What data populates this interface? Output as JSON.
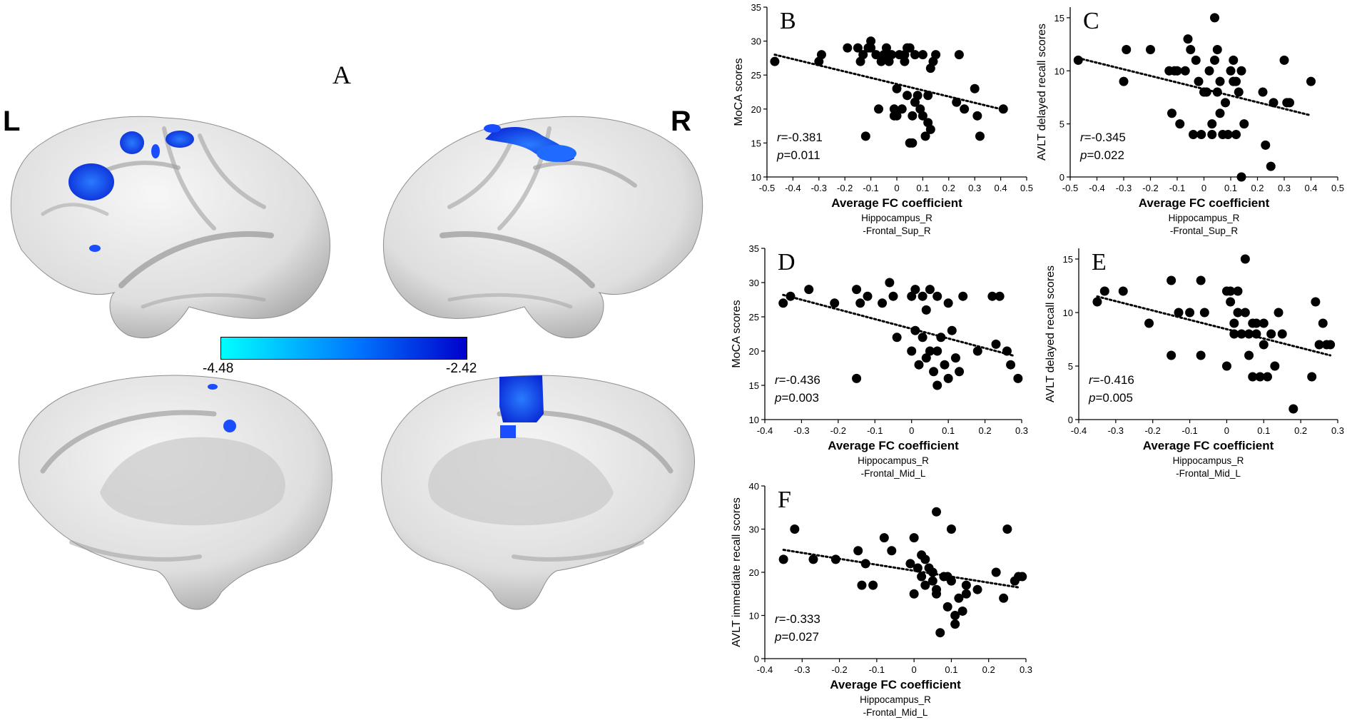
{
  "panel_a": {
    "label": "A",
    "left_hemisphere_label": "L",
    "right_hemisphere_label": "R",
    "colorbar": {
      "min_label": "-4.48",
      "max_label": "-2.42",
      "color_low": "#00ffff",
      "color_high": "#0000cc"
    },
    "surface_color": "#d6d6d6",
    "cluster_color": "#1a4dff"
  },
  "chart_data": [
    {
      "type": "scatter",
      "panel_label": "B",
      "xlabel": "Average FC coefficient",
      "xlabel_sub": [
        "Hippocampus_R",
        "-Frontal_Sup_R"
      ],
      "ylabel": "MoCA scores",
      "xlim": [
        -0.5,
        0.5
      ],
      "ylim": [
        10,
        35
      ],
      "xticks": [
        "-0.5",
        "-0.4",
        "-0.3",
        "-0.2",
        "-0.1",
        "0",
        "0.1",
        "0.2",
        "0.3",
        "0.4",
        "0.5"
      ],
      "yticks": [
        "10",
        "15",
        "20",
        "25",
        "30",
        "35"
      ],
      "r_text": "=-0.381",
      "p_text": "=0.011",
      "trend": {
        "x": [
          -0.47,
          0.4
        ],
        "y": [
          28.0,
          20.0
        ]
      },
      "points": {
        "x": [
          -0.47,
          -0.3,
          -0.29,
          -0.19,
          -0.15,
          -0.14,
          -0.13,
          -0.12,
          -0.11,
          -0.1,
          -0.1,
          -0.08,
          -0.07,
          -0.06,
          -0.05,
          -0.04,
          -0.03,
          -0.02,
          -0.01,
          -0.01,
          0.0,
          0.0,
          0.01,
          0.02,
          0.03,
          0.03,
          0.04,
          0.04,
          0.05,
          0.05,
          0.06,
          0.06,
          0.07,
          0.07,
          0.08,
          0.09,
          0.1,
          0.1,
          0.11,
          0.12,
          0.12,
          0.13,
          0.13,
          0.14,
          0.15,
          0.23,
          0.24,
          0.26,
          0.3,
          0.31,
          0.32,
          0.41
        ],
        "y": [
          27,
          27,
          28,
          29,
          29,
          27,
          28,
          16,
          29,
          29,
          30,
          28,
          20,
          27,
          28,
          29,
          27,
          28,
          19,
          20,
          23,
          19,
          28,
          20,
          27,
          28,
          29,
          22,
          15,
          29,
          15,
          19,
          28,
          21,
          22,
          20,
          28,
          19,
          16,
          22,
          18,
          26,
          17,
          27,
          28,
          21,
          28,
          20,
          23,
          19,
          16,
          20
        ]
      }
    },
    {
      "type": "scatter",
      "panel_label": "C",
      "xlabel": "Average FC coefficient",
      "xlabel_sub": [
        "Hippocampus_R",
        "-Frontal_Sup_R"
      ],
      "ylabel": "AVLT delayed recall scores",
      "xlim": [
        -0.5,
        0.5
      ],
      "ylim": [
        0,
        16
      ],
      "xticks": [
        "-0.5",
        "-0.4",
        "-0.3",
        "-0.2",
        "-0.1",
        "0",
        "0.1",
        "0.2",
        "0.3",
        "0.4",
        "0.5"
      ],
      "yticks": [
        "0",
        "5",
        "10",
        "15"
      ],
      "r_text": "=-0.345",
      "p_text": "=0.022",
      "trend": {
        "x": [
          -0.47,
          0.4
        ],
        "y": [
          11.2,
          5.8
        ]
      },
      "points": {
        "x": [
          -0.47,
          -0.3,
          -0.29,
          -0.2,
          -0.13,
          -0.12,
          -0.11,
          -0.1,
          -0.09,
          -0.07,
          -0.06,
          -0.05,
          -0.04,
          -0.03,
          -0.02,
          -0.01,
          0.0,
          0.01,
          0.02,
          0.03,
          0.03,
          0.04,
          0.04,
          0.05,
          0.05,
          0.06,
          0.06,
          0.07,
          0.08,
          0.09,
          0.1,
          0.11,
          0.11,
          0.12,
          0.12,
          0.13,
          0.14,
          0.14,
          0.15,
          0.22,
          0.23,
          0.25,
          0.26,
          0.3,
          0.31,
          0.32,
          0.4
        ],
        "y": [
          11,
          9,
          12,
          12,
          10,
          6,
          10,
          10,
          5,
          10,
          13,
          12,
          4,
          11,
          9,
          4,
          8,
          8,
          10,
          5,
          4,
          11,
          15,
          12,
          8,
          6,
          9,
          4,
          7,
          4,
          10,
          11,
          9,
          4,
          9,
          8,
          0,
          10,
          5,
          8,
          3,
          1,
          7,
          11,
          7,
          7,
          9
        ]
      }
    },
    {
      "type": "scatter",
      "panel_label": "D",
      "xlabel": "Average FC coefficient",
      "xlabel_sub": [
        "Hippocampus_R",
        "-Frontal_Mid_L"
      ],
      "ylabel": "MoCA scores",
      "xlim": [
        -0.4,
        0.3
      ],
      "ylim": [
        10,
        35
      ],
      "xticks": [
        "-0.4",
        "-0.3",
        "-0.2",
        "-0.1",
        "0",
        "0.1",
        "0.2",
        "0.3"
      ],
      "yticks": [
        "10",
        "15",
        "20",
        "25",
        "30",
        "35"
      ],
      "r_text": "=-0.436",
      "p_text": "=0.003",
      "trend": {
        "x": [
          -0.35,
          0.28
        ],
        "y": [
          28.2,
          19.3
        ]
      },
      "points": {
        "x": [
          -0.35,
          -0.33,
          -0.28,
          -0.21,
          -0.15,
          -0.15,
          -0.14,
          -0.12,
          -0.08,
          -0.06,
          -0.05,
          -0.04,
          0.0,
          0.0,
          0.01,
          0.01,
          0.02,
          0.03,
          0.03,
          0.04,
          0.04,
          0.05,
          0.05,
          0.06,
          0.07,
          0.07,
          0.07,
          0.08,
          0.09,
          0.1,
          0.1,
          0.11,
          0.12,
          0.13,
          0.14,
          0.18,
          0.22,
          0.23,
          0.24,
          0.26,
          0.27,
          0.29
        ],
        "y": [
          27,
          28,
          29,
          27,
          29,
          16,
          27,
          28,
          27,
          30,
          28,
          22,
          28,
          20,
          23,
          29,
          18,
          28,
          22,
          19,
          26,
          20,
          29,
          17,
          15,
          28,
          20,
          22,
          18,
          16,
          27,
          23,
          19,
          17,
          28,
          20,
          28,
          21,
          28,
          20,
          18,
          16
        ]
      }
    },
    {
      "type": "scatter",
      "panel_label": "E",
      "xlabel": "Average FC coefficient",
      "xlabel_sub": [
        "Hippocampus_R",
        "-Frontal_Mid_L"
      ],
      "ylabel": "AVLT delayed recall scores",
      "xlim": [
        -0.4,
        0.3
      ],
      "ylim": [
        0,
        16
      ],
      "xticks": [
        "-0.4",
        "-0.3",
        "-0.2",
        "-0.1",
        "0",
        "0.1",
        "0.2",
        "0.3"
      ],
      "yticks": [
        "0",
        "5",
        "10",
        "15"
      ],
      "r_text": "=-0.416",
      "p_text": "=0.005",
      "trend": {
        "x": [
          -0.35,
          0.28
        ],
        "y": [
          11.5,
          6.0
        ]
      },
      "points": {
        "x": [
          -0.35,
          -0.33,
          -0.28,
          -0.21,
          -0.15,
          -0.15,
          -0.13,
          -0.1,
          -0.07,
          -0.07,
          -0.06,
          0.0,
          0.0,
          0.01,
          0.01,
          0.02,
          0.02,
          0.03,
          0.03,
          0.04,
          0.05,
          0.05,
          0.06,
          0.06,
          0.07,
          0.07,
          0.08,
          0.08,
          0.09,
          0.1,
          0.1,
          0.11,
          0.12,
          0.13,
          0.14,
          0.15,
          0.18,
          0.23,
          0.24,
          0.25,
          0.26,
          0.27,
          0.28
        ],
        "y": [
          11,
          12,
          12,
          9,
          13,
          6,
          10,
          10,
          13,
          6,
          10,
          12,
          5,
          11,
          12,
          9,
          8,
          12,
          10,
          8,
          10,
          15,
          8,
          6,
          9,
          4,
          9,
          8,
          4,
          7,
          9,
          4,
          8,
          5,
          10,
          8,
          1,
          4,
          11,
          7,
          9,
          7,
          7
        ]
      }
    },
    {
      "type": "scatter",
      "panel_label": "F",
      "xlabel": "Average FC coefficient",
      "xlabel_sub": [
        "Hippocampus_R",
        "-Frontal_Mid_L"
      ],
      "ylabel": "AVLT immediate recall scores",
      "xlim": [
        -0.4,
        0.3
      ],
      "ylim": [
        0,
        40
      ],
      "xticks": [
        "-0.4",
        "-0.3",
        "-0.2",
        "-0.1",
        "0",
        "0.1",
        "0.2",
        "0.3"
      ],
      "yticks": [
        "0",
        "10",
        "20",
        "30",
        "40"
      ],
      "r_text": "=-0.333",
      "p_text": "=0.027",
      "trend": {
        "x": [
          -0.35,
          0.28
        ],
        "y": [
          25.2,
          16.5
        ]
      },
      "points": {
        "x": [
          -0.35,
          -0.32,
          -0.27,
          -0.21,
          -0.15,
          -0.14,
          -0.13,
          -0.11,
          -0.08,
          -0.06,
          -0.01,
          0.0,
          0.0,
          0.01,
          0.02,
          0.02,
          0.03,
          0.03,
          0.04,
          0.05,
          0.05,
          0.06,
          0.06,
          0.06,
          0.07,
          0.08,
          0.09,
          0.09,
          0.1,
          0.1,
          0.11,
          0.11,
          0.12,
          0.13,
          0.14,
          0.14,
          0.17,
          0.22,
          0.24,
          0.25,
          0.27,
          0.28,
          0.29
        ],
        "y": [
          23,
          30,
          23,
          23,
          25,
          17,
          22,
          17,
          28,
          25,
          22,
          28,
          15,
          21,
          19,
          24,
          17,
          23,
          21,
          18,
          20,
          16,
          34,
          15,
          6,
          19,
          19,
          12,
          30,
          18,
          10,
          8,
          14,
          11,
          15,
          17,
          16,
          20,
          14,
          30,
          18,
          19,
          19
        ]
      }
    }
  ]
}
